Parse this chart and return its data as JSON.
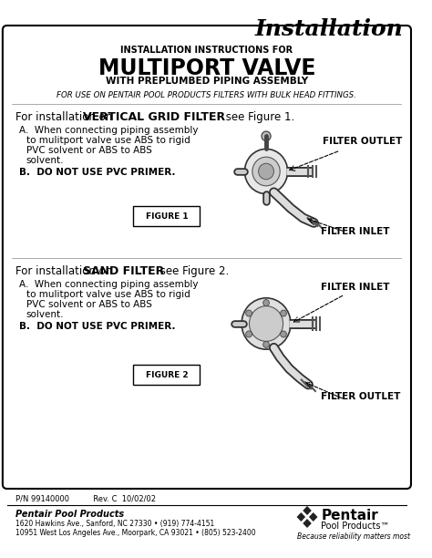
{
  "title_italic": "Installation",
  "header_line1": "INSTALLATION INSTRUCTIONS FOR",
  "header_main": "MULTIPORT VALVE",
  "header_line3": "WITH PREPLUMBED PIPING ASSEMBLY",
  "italic_note": "FOR USE ON PENTAIR POOL PRODUCTS FILTERS WITH BULK HEAD FITTINGS.",
  "section1_intro_normal": "For installation on ",
  "section1_intro_bold": "VERTICAL GRID FILTER",
  "section1_intro_end": " see Figure 1.",
  "section1_A1": "A.  When connecting piping assembly",
  "section1_A2": "to mulitport valve use ABS to rigid",
  "section1_A3": "PVC solvent or ABS to ABS",
  "section1_A4": "solvent.",
  "section1_B": "B.  DO NOT USE PVC PRIMER.",
  "figure1_label": "FIGURE 1",
  "fig1_outlet": "FILTER OUTLET",
  "fig1_inlet": "FILTER INLET",
  "section2_intro_normal": "For installation on ",
  "section2_intro_bold": "SAND FILTER",
  "section2_intro_end": " see Figure 2.",
  "section2_A1": "A.  When connecting piping assembly",
  "section2_A2": "to mulitport valve use ABS to rigid",
  "section2_A3": "PVC solvent or ABS to ABS",
  "section2_A4": "solvent.",
  "section2_B": "B.  DO NOT USE PVC PRIMER.",
  "figure2_label": "FIGURE 2",
  "fig2_inlet": "FILTER INLET",
  "fig2_outlet": "FILTER OUTLET",
  "footer_pn": "P/N 99140000          Rev. C  10/02/02",
  "footer_company": "Pentair Pool Products",
  "footer_addr1": "1620 Hawkins Ave., Sanford, NC 27330 • (919) 774-4151",
  "footer_addr2": "10951 West Los Angeles Ave., Moorpark, CA 93021 • (805) 523-2400",
  "pentair_logo_text": "Pentair",
  "pentair_sub": "Pool Products™",
  "pentair_tagline": "Because reliability matters most",
  "bg_color": "#ffffff",
  "border_color": "#000000",
  "text_color": "#000000"
}
